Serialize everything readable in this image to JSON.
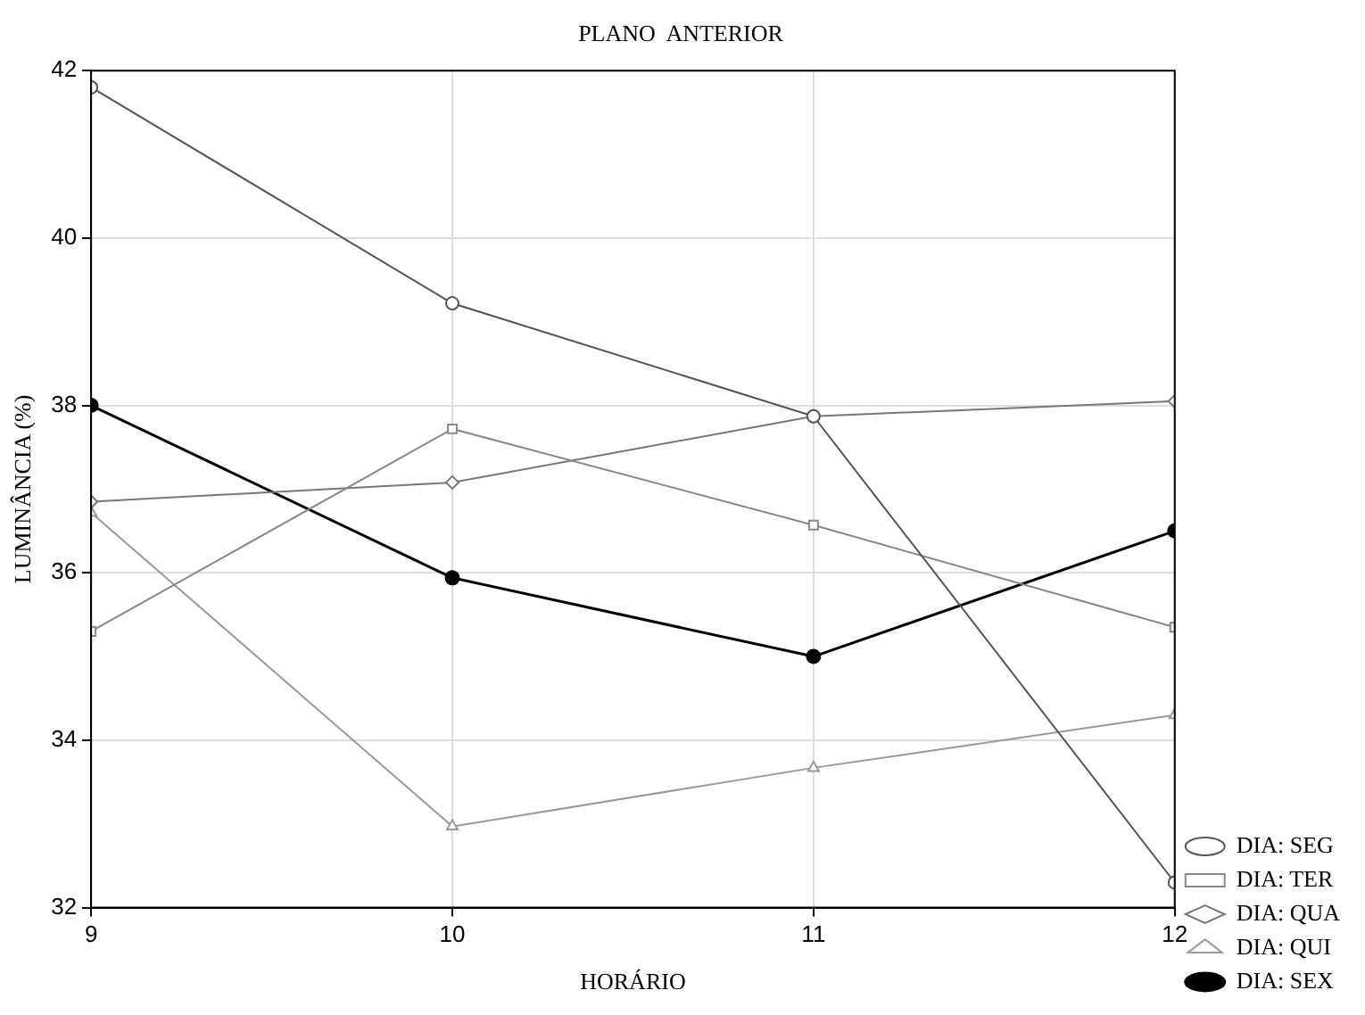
{
  "chart_data": {
    "type": "line",
    "title": "PLANO  ANTERIOR",
    "xlabel": "HORÁRIO",
    "ylabel": "LUMINÂNCIA (%)",
    "x": [
      9,
      10,
      11,
      12
    ],
    "xlim": [
      9,
      12
    ],
    "xticks": [
      9,
      10,
      11,
      12
    ],
    "ylim": [
      32,
      42
    ],
    "yticks": [
      32,
      34,
      36,
      38,
      40,
      42
    ],
    "grid": true,
    "legend": "bottom right",
    "series": [
      {
        "name": "DIA: SEG",
        "color": "#555555",
        "marker": "circle",
        "values": [
          41.8,
          39.22,
          37.87,
          32.3
        ]
      },
      {
        "name": "DIA: TER",
        "color": "#888888",
        "marker": "square",
        "values": [
          35.3,
          37.72,
          36.57,
          35.35
        ]
      },
      {
        "name": "DIA: QUA",
        "color": "#777777",
        "marker": "diamond",
        "values": [
          36.85,
          37.08,
          37.87,
          38.05
        ]
      },
      {
        "name": "DIA: QUI",
        "color": "#999999",
        "marker": "triangle",
        "values": [
          36.72,
          32.97,
          33.67,
          34.3
        ]
      },
      {
        "name": "DIA: SEX",
        "color": "#000000",
        "marker": "circle",
        "values": [
          38.0,
          35.94,
          35.0,
          36.5
        ]
      }
    ]
  }
}
